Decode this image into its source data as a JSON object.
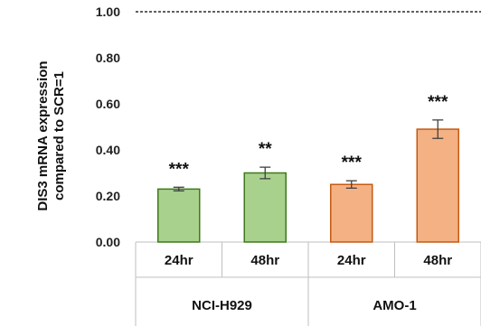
{
  "chart_data": {
    "type": "bar",
    "ylabel": [
      "DIS3 mRNA expression",
      "compared to SCR=1"
    ],
    "ylim": [
      0,
      1.0
    ],
    "y_ticks": [
      "0.00",
      "0.20",
      "0.40",
      "0.60",
      "0.80",
      "1.00"
    ],
    "reference_line": 1.0,
    "grid": false,
    "groups": [
      {
        "name": "NCI-H929",
        "color": "#a9d18e",
        "border": "#3d7a1a",
        "bars": [
          {
            "category": "24hr",
            "value": 0.23,
            "error": 0.008,
            "significance": "***"
          },
          {
            "category": "48hr",
            "value": 0.3,
            "error": 0.025,
            "significance": "**"
          }
        ]
      },
      {
        "name": "AMO-1",
        "color": "#f4b183",
        "border": "#c55a11",
        "bars": [
          {
            "category": "24hr",
            "value": 0.25,
            "error": 0.016,
            "significance": "***"
          },
          {
            "category": "48hr",
            "value": 0.49,
            "error": 0.04,
            "significance": "***"
          }
        ]
      }
    ]
  }
}
